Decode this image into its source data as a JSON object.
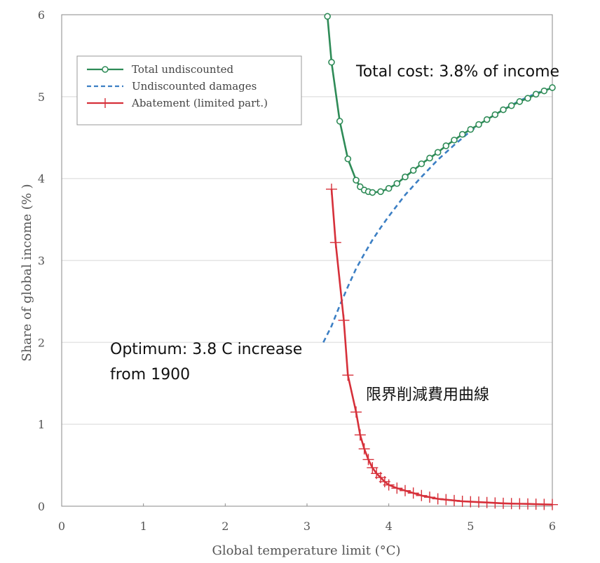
{
  "chart_data": {
    "type": "line",
    "xlabel": "Global temperature limit (°C)",
    "ylabel": "Share of global income (% )",
    "xlim": [
      0,
      6
    ],
    "ylim": [
      0,
      6
    ],
    "x_ticks": [
      "0",
      "1",
      "2",
      "3",
      "4",
      "5",
      "6"
    ],
    "y_ticks": [
      "0",
      "1",
      "2",
      "3",
      "4",
      "5",
      "6"
    ],
    "grid": "horizontal",
    "legend_position": "top-left",
    "colors": {
      "total": "#2e8b57",
      "damages": "#3c7fc4",
      "abatement": "#d6303a",
      "grid": "#e4e4e4",
      "axis": "#8a8a8a"
    },
    "series": [
      {
        "name": "Total undiscounted",
        "style": "solid-circle-markers",
        "x": [
          3.25,
          3.3,
          3.4,
          3.5,
          3.6,
          3.65,
          3.7,
          3.75,
          3.8,
          3.9,
          4.0,
          4.1,
          4.2,
          4.3,
          4.4,
          4.5,
          4.6,
          4.7,
          4.8,
          4.9,
          5.0,
          5.1,
          5.2,
          5.3,
          5.4,
          5.5,
          5.6,
          5.7,
          5.8,
          5.9,
          6.0
        ],
        "y": [
          5.98,
          5.42,
          4.7,
          4.24,
          3.98,
          3.9,
          3.86,
          3.84,
          3.83,
          3.84,
          3.88,
          3.94,
          4.02,
          4.1,
          4.18,
          4.25,
          4.32,
          4.4,
          4.47,
          4.54,
          4.6,
          4.66,
          4.72,
          4.78,
          4.84,
          4.89,
          4.94,
          4.98,
          5.03,
          5.07,
          5.11
        ]
      },
      {
        "name": "Undiscounted damages",
        "style": "dashed",
        "x": [
          3.2,
          3.3,
          3.4,
          3.5,
          3.6,
          3.7,
          3.8,
          3.9,
          4.0,
          4.2,
          4.4,
          4.6,
          4.8,
          5.0,
          5.2,
          5.4,
          5.6,
          5.8,
          6.0
        ],
        "y": [
          2.0,
          2.2,
          2.45,
          2.68,
          2.9,
          3.08,
          3.25,
          3.4,
          3.54,
          3.8,
          4.02,
          4.23,
          4.41,
          4.58,
          4.72,
          4.84,
          4.95,
          5.04,
          5.11
        ]
      },
      {
        "name": "Abatement (limited part.)",
        "style": "solid-plus-markers",
        "x": [
          3.3,
          3.35,
          3.45,
          3.5,
          3.6,
          3.65,
          3.7,
          3.75,
          3.8,
          3.85,
          3.9,
          3.95,
          4.0,
          4.1,
          4.2,
          4.3,
          4.4,
          4.5,
          4.6,
          4.7,
          4.8,
          4.9,
          5.0,
          5.1,
          5.2,
          5.3,
          5.4,
          5.5,
          5.6,
          5.7,
          5.8,
          5.9,
          6.0
        ],
        "y": [
          3.87,
          3.22,
          2.27,
          1.6,
          1.15,
          0.87,
          0.7,
          0.57,
          0.47,
          0.4,
          0.35,
          0.3,
          0.26,
          0.22,
          0.19,
          0.16,
          0.13,
          0.11,
          0.09,
          0.08,
          0.07,
          0.06,
          0.055,
          0.05,
          0.045,
          0.04,
          0.035,
          0.032,
          0.03,
          0.028,
          0.025,
          0.022,
          0.02
        ]
      }
    ],
    "annotations": {
      "total_cost": "Total cost: 3.8% of income",
      "optimum_line1": "Optimum: 3.8 C increase",
      "optimum_line2": "from 1900",
      "mac_curve": "限界削減費用曲線"
    }
  }
}
